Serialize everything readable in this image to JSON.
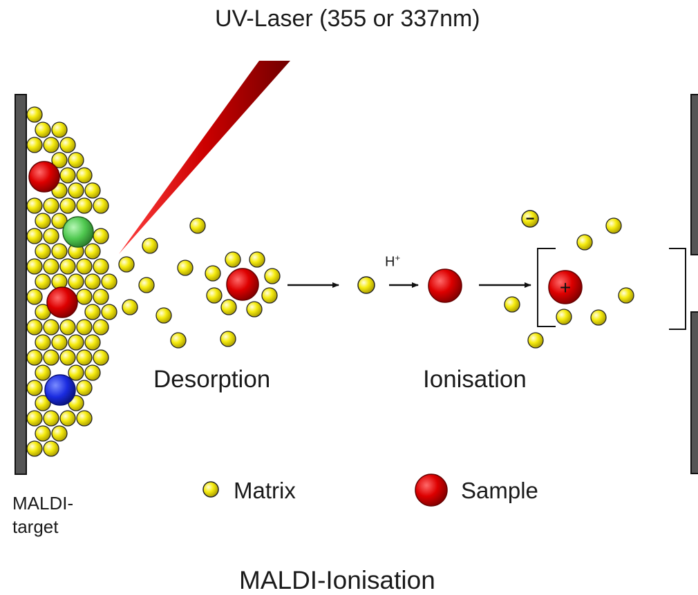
{
  "diagram": {
    "laser_label": "UV-Laser (355 or 337nm)",
    "stage_labels": {
      "desorption": "Desorption",
      "ionisation": "Ionisation"
    },
    "proton_label": "H",
    "proton_charge": "+",
    "target_label_line1": "MALDI-",
    "target_label_line2": "target",
    "legend": {
      "matrix": "Matrix",
      "sample": "Sample"
    },
    "caption": "MALDI-Ionisation",
    "ion_charges": {
      "negative": "−",
      "positive": "+"
    }
  },
  "colors": {
    "matrix": "#f2e600",
    "sample": "#d40000",
    "green_analyte": "#4fc84f",
    "blue_analyte": "#1a2be0",
    "target_plate": "#555555",
    "laser": "#cc0000"
  }
}
